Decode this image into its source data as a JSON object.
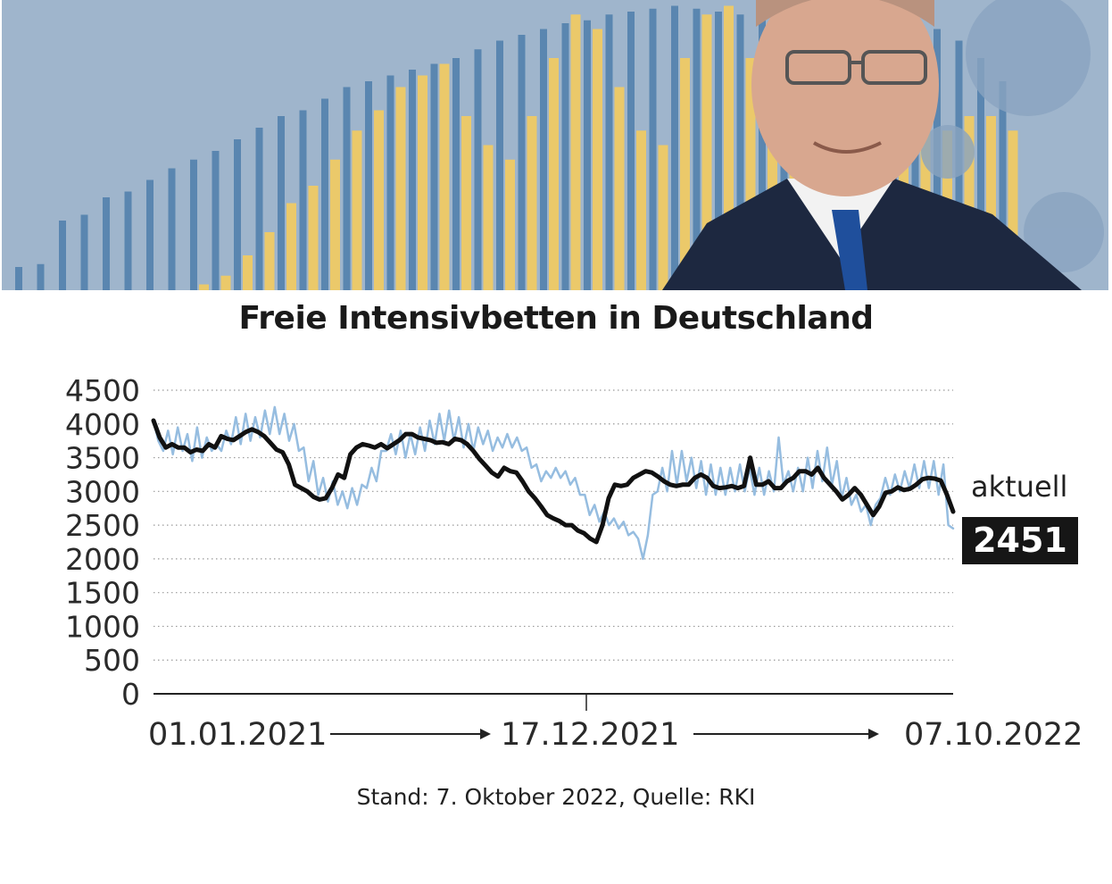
{
  "header": {
    "image_description_icon": "person-portrait-with-bar-chart-background",
    "colors": {
      "background": "#9fb5cc",
      "blue_bars": "#5a86b0",
      "yellow_bars": "#ebc96a",
      "virus": "#8aa4c0"
    }
  },
  "chart_data": {
    "type": "line",
    "title": "Freie Intensivbetten in Deutschland",
    "ylim": [
      0,
      4500
    ],
    "yticks": [
      "4500",
      "4000",
      "3500",
      "3000",
      "2500",
      "2000",
      "1500",
      "1000",
      "500",
      "0"
    ],
    "x_labels": [
      "01.01.2021",
      "17.12.2021",
      "07.10.2022"
    ],
    "grid": "horizontal dotted",
    "series": [
      {
        "color": "#96bde0",
        "values": [
          4050,
          3750,
          3600,
          3900,
          3550,
          3950,
          3600,
          3850,
          3450,
          3950,
          3500,
          3800,
          3600,
          3700,
          3600,
          3900,
          3700,
          4100,
          3700,
          4150,
          3750,
          4100,
          3800,
          4200,
          3850,
          4250,
          3850,
          4150,
          3750,
          4000,
          3600,
          3650,
          3150,
          3450,
          2950,
          3200,
          2850,
          3150,
          2800,
          3000,
          2750,
          3050,
          2800,
          3100,
          3050,
          3350,
          3150,
          3600,
          3600,
          3850,
          3550,
          3900,
          3500,
          3850,
          3550,
          3950,
          3600,
          4050,
          3700,
          4150,
          3750,
          4200,
          3750,
          4100,
          3650,
          4000,
          3600,
          3950,
          3700,
          3900,
          3600,
          3800,
          3650,
          3850,
          3650,
          3800,
          3600,
          3650,
          3350,
          3400,
          3150,
          3300,
          3200,
          3350,
          3200,
          3300,
          3100,
          3200,
          2950,
          2950,
          2650,
          2800,
          2550,
          2700,
          2500,
          2600,
          2450,
          2550,
          2350,
          2400,
          2300,
          2000,
          2350,
          2950,
          3000,
          3350,
          3000,
          3600,
          3100,
          3600,
          3150,
          3500,
          3050,
          3450,
          2950,
          3400,
          2950,
          3350,
          2950,
          3350,
          3000,
          3400,
          3000,
          3350,
          2950,
          3350,
          2950,
          3300,
          3000,
          3800,
          3100,
          3300,
          3000,
          3350,
          3000,
          3500,
          3050,
          3600,
          3150,
          3650,
          3100,
          3450,
          2900,
          3200,
          2800,
          2950,
          2700,
          2800,
          2500,
          2800,
          2900,
          3200,
          2950,
          3250,
          3000,
          3300,
          3050,
          3400,
          3050,
          3450,
          3050,
          3450,
          2950,
          3400,
          2500,
          2451
        ]
      },
      {
        "color": "#111111",
        "values": [
          4050,
          3800,
          3650,
          3700,
          3650,
          3650,
          3580,
          3620,
          3600,
          3700,
          3650,
          3820,
          3780,
          3760,
          3820,
          3880,
          3920,
          3880,
          3820,
          3720,
          3620,
          3580,
          3400,
          3100,
          3050,
          3000,
          2920,
          2880,
          2900,
          3050,
          3250,
          3200,
          3550,
          3650,
          3700,
          3680,
          3650,
          3700,
          3640,
          3700,
          3760,
          3850,
          3850,
          3800,
          3780,
          3760,
          3720,
          3730,
          3700,
          3780,
          3760,
          3700,
          3600,
          3480,
          3380,
          3280,
          3220,
          3350,
          3300,
          3280,
          3150,
          3000,
          2900,
          2780,
          2650,
          2600,
          2560,
          2500,
          2500,
          2420,
          2380,
          2300,
          2250,
          2500,
          2900,
          3100,
          3080,
          3100,
          3200,
          3250,
          3300,
          3280,
          3220,
          3150,
          3100,
          3080,
          3100,
          3100,
          3200,
          3250,
          3200,
          3080,
          3050,
          3060,
          3080,
          3050,
          3080,
          3500,
          3100,
          3100,
          3150,
          3050,
          3050,
          3150,
          3200,
          3300,
          3300,
          3250,
          3350,
          3200,
          3100,
          3000,
          2880,
          2950,
          3050,
          2950,
          2800,
          2650,
          2780,
          2980,
          3000,
          3060,
          3020,
          3040,
          3100,
          3180,
          3200,
          3190,
          3160,
          2950,
          2700
        ]
      }
    ],
    "current_label": "aktuell",
    "current_value": "2451",
    "source": "Stand: 7. Oktober 2022, Quelle: RKI"
  }
}
